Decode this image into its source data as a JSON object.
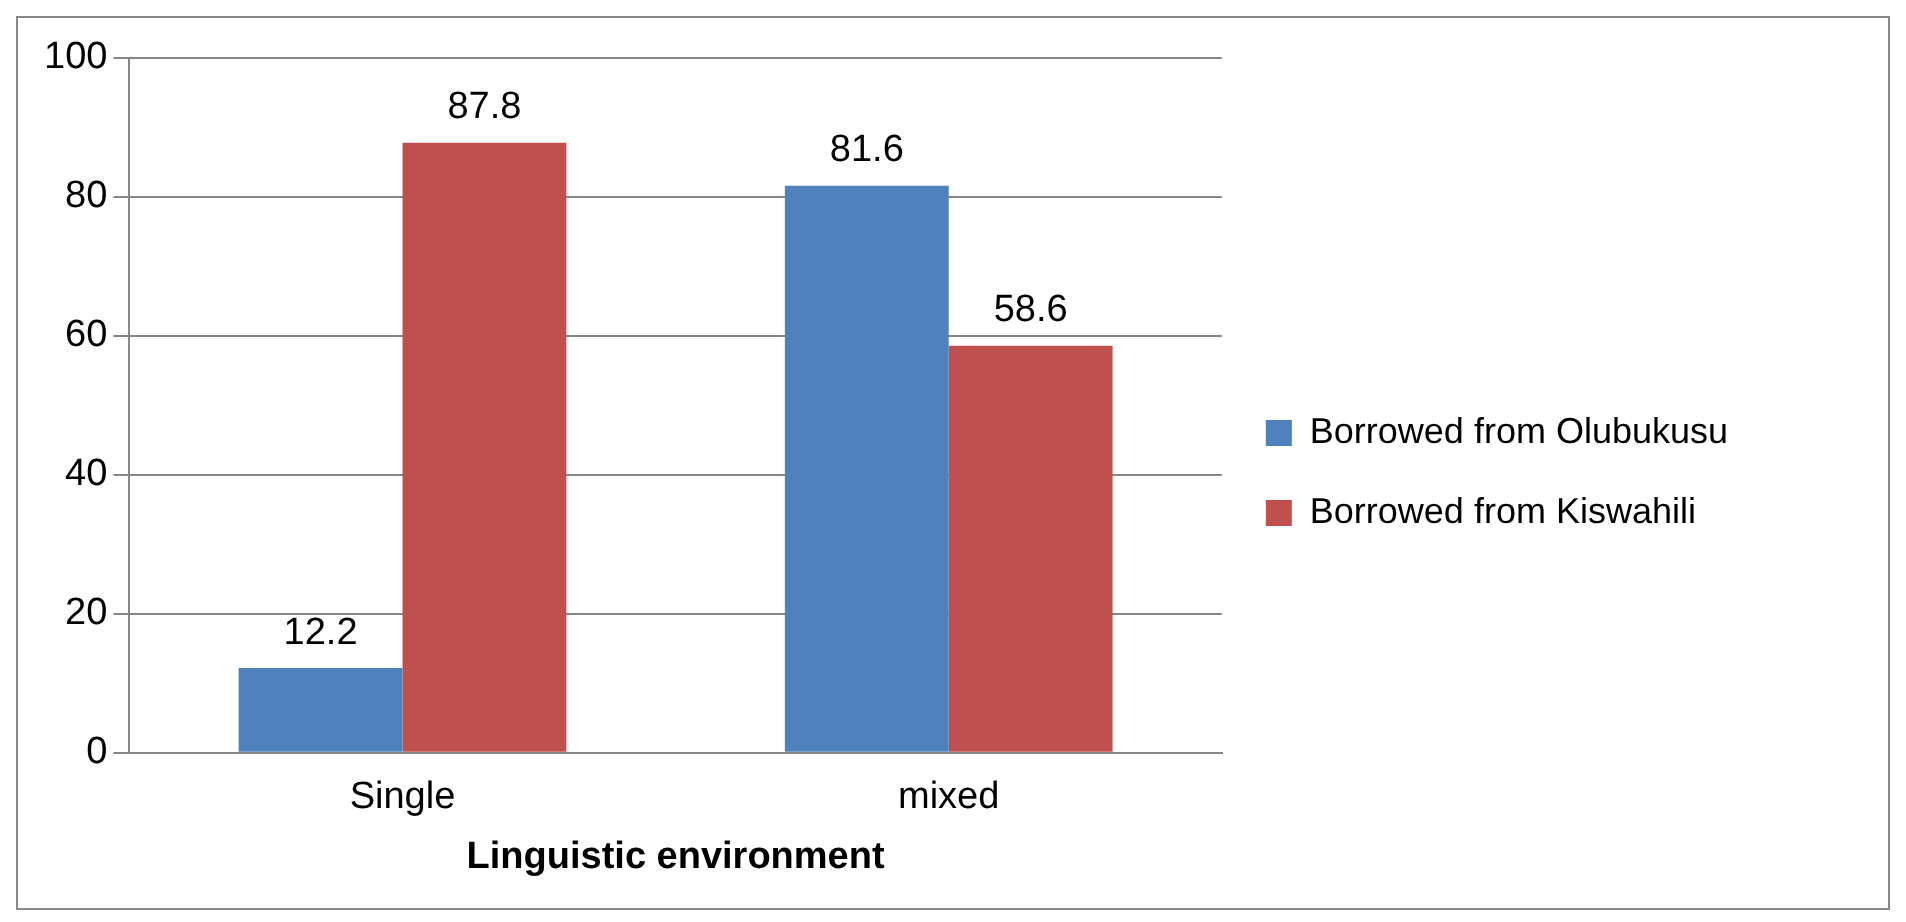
{
  "chart_data": {
    "type": "bar",
    "xlabel": "Linguistic environment",
    "categories": [
      "Single",
      "mixed"
    ],
    "series": [
      {
        "name": "Borrowed from Olubukusu",
        "color": "#4f81bd",
        "values": [
          12.2,
          81.6
        ]
      },
      {
        "name": "Borrowed from Kiswahili",
        "color": "#c0504d",
        "values": [
          87.8,
          58.6
        ]
      }
    ],
    "ylim": [
      0,
      100
    ],
    "yticks": [
      0,
      20,
      40,
      60,
      80,
      100
    ],
    "grid": "y",
    "legend": "right",
    "data_labels": true
  }
}
